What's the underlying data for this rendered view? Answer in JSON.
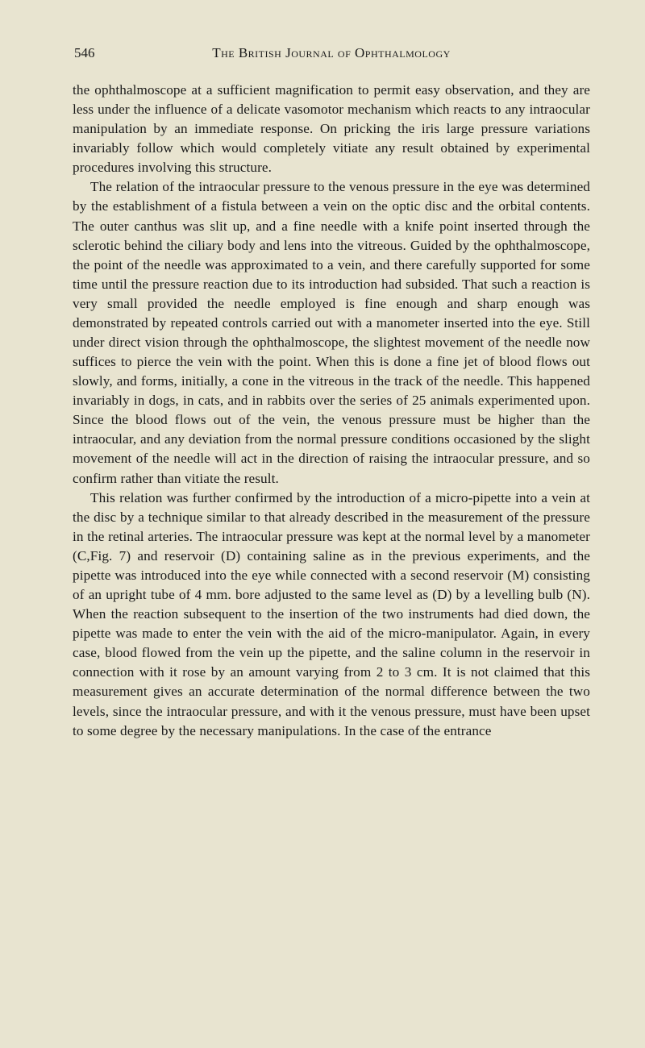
{
  "page_number": "546",
  "header_title": "The British Journal of Ophthalmology",
  "paragraphs": {
    "p1": "the ophthalmoscope at a sufficient magnification to permit easy observation, and they are less under the influence of a delicate vasomotor mechanism which reacts to any intraocular manipulation by an immediate response. On pricking the iris large pressure variations invariably follow which would completely vitiate any result obtained by experimental procedures involving this structure.",
    "p2": "The relation of the intraocular pressure to the venous pressure in the eye was determined by the establishment of a fistula between a vein on the optic disc and the orbital contents. The outer canthus was slit up, and a fine needle with a knife point inserted through the sclerotic behind the ciliary body and lens into the vitreous. Guided by the ophthalmoscope, the point of the needle was approximated to a vein, and there carefully supported for some time until the pressure reaction due to its introduction had subsided. That such a reaction is very small provided the needle employed is fine enough and sharp enough was demonstrated by repeated controls carried out with a manometer inserted into the eye. Still under direct vision through the ophthalmoscope, the slightest movement of the needle now suffices to pierce the vein with the point. When this is done a fine jet of blood flows out slowly, and forms, initially, a cone in the vitreous in the track of the needle. This happened invariably in dogs, in cats, and in rabbits over the series of 25 animals experimented upon. Since the blood flows out of the vein, the venous pressure must be higher than the intraocular, and any deviation from the normal pressure conditions occasioned by the slight movement of the needle will act in the direction of raising the intraocular pressure, and so confirm rather than vitiate the result.",
    "p3": "This relation was further confirmed by the introduction of a micro-pipette into a vein at the disc by a technique similar to that already described in the measurement of the pressure in the retinal arteries. The intraocular pressure was kept at the normal level by a manometer (C,Fig. 7) and reservoir (D) containing saline as in the previous experiments, and the pipette was introduced into the eye while connected with a second reservoir (M) consisting of an upright tube of 4 mm. bore adjusted to the same level as (D) by a levelling bulb (N). When the reaction subsequent to the insertion of the two instruments had died down, the pipette was made to enter the vein with the aid of the micro-manipulator. Again, in every case, blood flowed from the vein up the pipette, and the saline column in the reservoir in connection with it rose by an amount varying from 2 to 3 cm. It is not claimed that this measurement gives an accurate determination of the normal difference between the two levels, since the intraocular pressure, and with it the venous pressure, must have been upset to some degree by the necessary manipulations. In the case of the entrance"
  },
  "colors": {
    "background": "#e8e4d0",
    "text": "#1a1a1a"
  },
  "typography": {
    "body_fontsize": 17.2,
    "header_fontsize": 17,
    "pagenum_fontsize": 17,
    "line_height": 1.4
  }
}
